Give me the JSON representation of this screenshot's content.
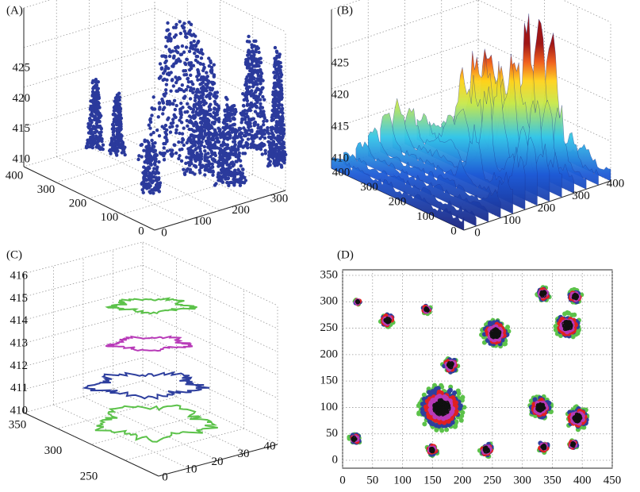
{
  "panels": [
    {
      "label": "(A)",
      "z_ticks": [
        410,
        415,
        420,
        425
      ],
      "y_ticks": [
        400,
        300,
        200,
        100,
        0
      ],
      "x_ticks": [
        0,
        100,
        200,
        300
      ]
    },
    {
      "label": "(B)",
      "z_ticks": [
        410,
        415,
        420,
        425
      ],
      "y_ticks": [
        400,
        300,
        200,
        100,
        0
      ],
      "x_ticks": [
        0,
        100,
        200,
        300,
        400
      ]
    },
    {
      "label": "(C)",
      "z_ticks": [
        416,
        415,
        414,
        413,
        412,
        411,
        410
      ],
      "y_ticks": [
        350,
        300,
        250
      ],
      "x_ticks": [
        0,
        10,
        20,
        30,
        40
      ]
    },
    {
      "label": "(D)",
      "y_ticks": [
        0,
        50,
        100,
        150,
        200,
        250,
        300,
        350
      ],
      "x_ticks": [
        0,
        50,
        100,
        150,
        200,
        250,
        300,
        350,
        400,
        450
      ]
    }
  ]
}
